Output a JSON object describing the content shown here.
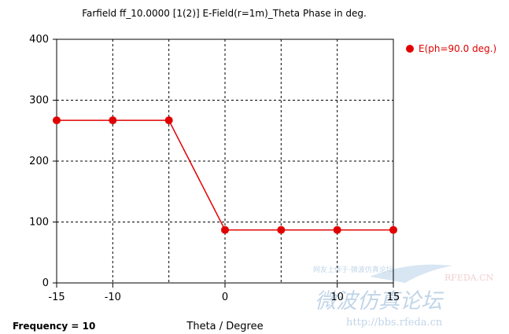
{
  "chart_data": {
    "type": "line",
    "title": "Farfield ff_10.0000 [1(2)] E-Field(r=1m)_Theta Phase in deg.",
    "xlabel": "Theta / Degree",
    "ylabel": "",
    "xlim": [
      -15,
      15
    ],
    "ylim": [
      0,
      400
    ],
    "x_ticks": [
      "-15",
      "-10",
      "0",
      "10",
      "15"
    ],
    "y_ticks": [
      "0",
      "100",
      "200",
      "300",
      "400"
    ],
    "x_gridlines": [
      -10,
      -5,
      0,
      5,
      10
    ],
    "y_gridlines": [
      100,
      200,
      300
    ],
    "grid": true,
    "legend_position": "top-right",
    "series": [
      {
        "name": "E(ph=90.0 deg.)",
        "color": "#e00000",
        "x": [
          -15,
          -10,
          -5,
          0,
          5,
          10,
          15
        ],
        "y": [
          267,
          267,
          267,
          87,
          87,
          87,
          87
        ]
      }
    ]
  },
  "footer": {
    "frequency_label": "Frequency = 10"
  },
  "watermark": {
    "logo": "RFEDA.CN",
    "line_cn": "微波仿真论坛",
    "url": "http://bbs.rfeda.cn",
    "small_cn": "网友上传于·微波仿真论坛"
  }
}
